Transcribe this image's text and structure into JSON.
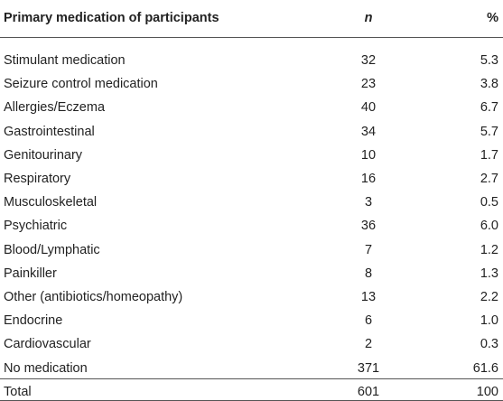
{
  "table": {
    "header": [
      "Primary medication of participants",
      "n",
      "%"
    ],
    "rows": [
      [
        "Stimulant medication",
        "32",
        "5.3"
      ],
      [
        "Seizure control medication",
        "23",
        "3.8"
      ],
      [
        "Allergies/Eczema",
        "40",
        "6.7"
      ],
      [
        "Gastrointestinal",
        "34",
        "5.7"
      ],
      [
        "Genitourinary",
        "10",
        "1.7"
      ],
      [
        "Respiratory",
        "16",
        "2.7"
      ],
      [
        "Musculoskeletal",
        "3",
        "0.5"
      ],
      [
        "Psychiatric",
        "36",
        "6.0"
      ],
      [
        "Blood/Lymphatic",
        "7",
        "1.2"
      ],
      [
        "Painkiller",
        "8",
        "1.3"
      ],
      [
        "Other (antibiotics/homeopathy)",
        "13",
        "2.2"
      ],
      [
        "Endocrine",
        "6",
        "1.0"
      ],
      [
        "Cardiovascular",
        "2",
        "0.3"
      ],
      [
        "No medication",
        "371",
        "61.6"
      ]
    ],
    "total": [
      "Total",
      "601",
      "100"
    ]
  }
}
